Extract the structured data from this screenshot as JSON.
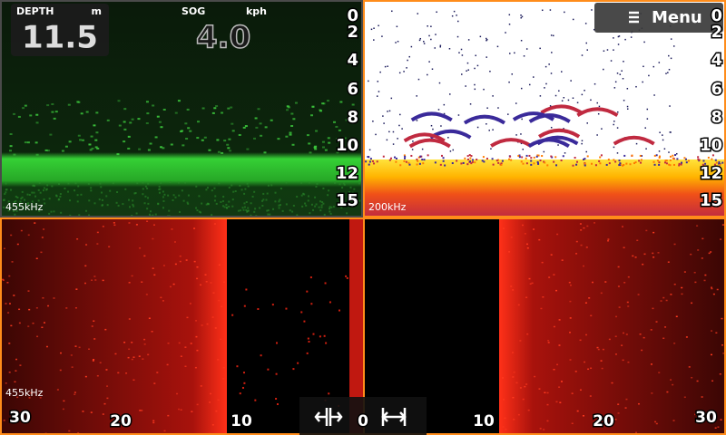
{
  "depth_panel": {
    "depth_label": "DEPTH",
    "depth_unit": "m",
    "depth_value": "11.5",
    "sog_label": "SOG",
    "sog_unit": "kph",
    "sog_value": "4.0",
    "scale": [
      "0",
      "2",
      "4",
      "6",
      "8",
      "10",
      "12",
      "15"
    ],
    "frequency": "455kHz"
  },
  "chart_panel": {
    "menu": "Menu",
    "scale": [
      "0",
      "2",
      "4",
      "6",
      "8",
      "10",
      "12",
      "15"
    ],
    "frequency": "200kHz"
  },
  "side_panel": {
    "frequency": "455kHz",
    "range_labels": [
      "30",
      "20",
      "10",
      "0",
      "10",
      "20",
      "30"
    ]
  }
}
